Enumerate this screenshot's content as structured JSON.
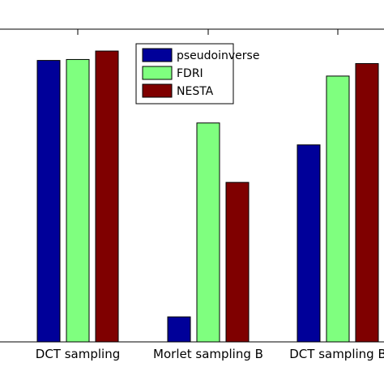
{
  "chart_data": {
    "type": "bar",
    "categories": [
      "DCT sampling",
      "Morlet sampling B",
      "DCT sampling B"
    ],
    "series": [
      {
        "name": "pseudoinverse",
        "color": "#000099",
        "values": [
          0.9,
          0.08,
          0.63
        ]
      },
      {
        "name": "FDRI",
        "color": "#7fff7f",
        "values": [
          0.903,
          0.7,
          0.85
        ]
      },
      {
        "name": "NESTA",
        "color": "#7f0000",
        "values": [
          0.93,
          0.51,
          0.89
        ]
      }
    ],
    "ylim": [
      0,
      1
    ],
    "grid": false,
    "legend_position": "top-center"
  }
}
